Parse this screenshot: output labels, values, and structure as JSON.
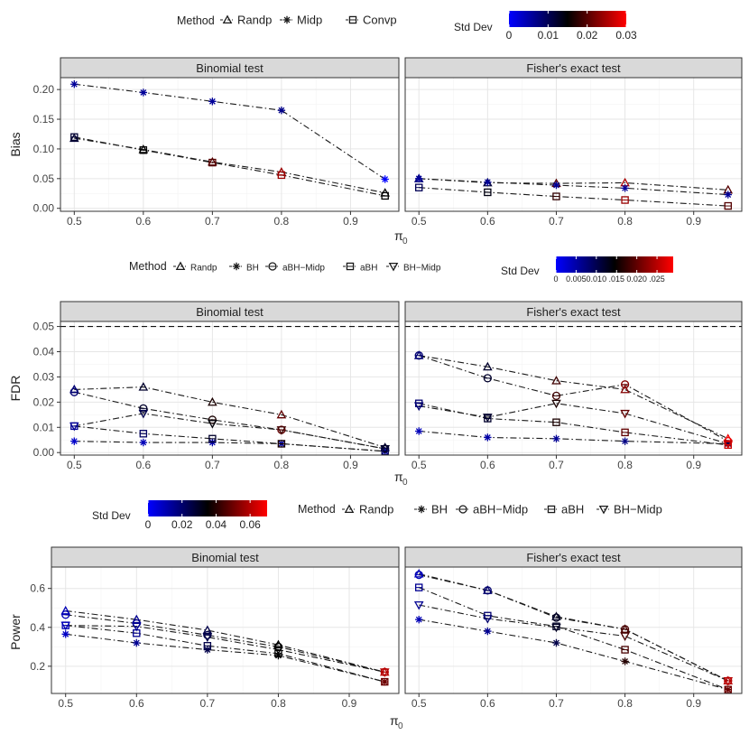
{
  "figure": {
    "method_label": "Method",
    "colorbar_label": "Std Dev",
    "colors": {
      "line": "#1a1a1a",
      "strip_fill": "#d9d9d9",
      "grid": "#ebebeb",
      "panel_border": "#333333",
      "low": "#0000ff",
      "mid": "#000000",
      "high": "#ff0000"
    }
  },
  "chart_data": [
    {
      "id": "bias",
      "type": "line",
      "ylabel": "Bias",
      "xlabel": "π",
      "xlabel_sub": "0",
      "x": [
        0.5,
        0.6,
        0.7,
        0.8,
        0.95
      ],
      "x_ticks": [
        0.5,
        0.6,
        0.7,
        0.8,
        0.9
      ],
      "x_tick_labels": [
        "0.5",
        "0.6",
        "0.7",
        "0.8",
        "0.9"
      ],
      "xlim": [
        0.48,
        0.97
      ],
      "ylim": [
        -0.005,
        0.22
      ],
      "y_ticks": [
        0,
        0.05,
        0.1,
        0.15,
        0.2
      ],
      "y_tick_labels": [
        "0.00",
        "0.05",
        "0.10",
        "0.15",
        "0.20"
      ],
      "methods": [
        {
          "name": "Randp",
          "marker": "triangle-up"
        },
        {
          "name": "Midp",
          "marker": "star"
        },
        {
          "name": "Convp",
          "marker": "square"
        }
      ],
      "colorbar": {
        "range": [
          0,
          0.03
        ],
        "ticks": [
          0,
          0.01,
          0.02,
          0.03
        ],
        "tick_labels": [
          "0",
          "0.01",
          "0.02",
          "0.03"
        ]
      },
      "panels": [
        {
          "title": "Binomial test",
          "series": [
            {
              "name": "Randp",
              "values": [
                0.118,
                0.099,
                0.078,
                0.061,
                0.026
              ],
              "sd": [
                0.012,
                0.015,
                0.02,
                0.024,
                0.015
              ]
            },
            {
              "name": "Midp",
              "values": [
                0.209,
                0.195,
                0.18,
                0.165,
                0.049
              ],
              "sd": [
                0.006,
                0.006,
                0.006,
                0.007,
                0.0
              ]
            },
            {
              "name": "Convp",
              "values": [
                0.12,
                0.098,
                0.077,
                0.056,
                0.021
              ],
              "sd": [
                0.012,
                0.015,
                0.02,
                0.024,
                0.015
              ]
            }
          ]
        },
        {
          "title": "Fisher's exact test",
          "series": [
            {
              "name": "Randp",
              "values": [
                0.05,
                0.043,
                0.042,
                0.043,
                0.031
              ],
              "sd": [
                0.008,
                0.012,
                0.02,
                0.025,
                0.02
              ]
            },
            {
              "name": "Midp",
              "values": [
                0.05,
                0.044,
                0.039,
                0.034,
                0.023
              ],
              "sd": [
                0.006,
                0.006,
                0.006,
                0.006,
                0.006
              ]
            },
            {
              "name": "Convp",
              "values": [
                0.035,
                0.027,
                0.02,
                0.014,
                0.004
              ],
              "sd": [
                0.01,
                0.014,
                0.018,
                0.024,
                0.02
              ]
            }
          ]
        }
      ]
    },
    {
      "id": "fdr",
      "type": "line",
      "ylabel": "FDR",
      "xlabel": "π",
      "xlabel_sub": "0",
      "x": [
        0.5,
        0.6,
        0.7,
        0.8,
        0.95
      ],
      "x_ticks": [
        0.5,
        0.6,
        0.7,
        0.8,
        0.9
      ],
      "x_tick_labels": [
        "0.5",
        "0.6",
        "0.7",
        "0.8",
        "0.9"
      ],
      "xlim": [
        0.48,
        0.97
      ],
      "ylim": [
        -0.001,
        0.052
      ],
      "y_ticks": [
        0,
        0.01,
        0.02,
        0.03,
        0.04,
        0.05
      ],
      "y_tick_labels": [
        "0.00",
        "0.01",
        "0.02",
        "0.03",
        "0.04",
        "0.05"
      ],
      "reference_line": 0.05,
      "methods": [
        {
          "name": "Randp",
          "marker": "triangle-up"
        },
        {
          "name": "BH",
          "marker": "star"
        },
        {
          "name": "aBH−Midp",
          "marker": "circle"
        },
        {
          "name": "aBH",
          "marker": "square"
        },
        {
          "name": "BH−Midp",
          "marker": "triangle-down"
        }
      ],
      "colorbar": {
        "range": [
          0,
          0.029
        ],
        "ticks": [
          0,
          0.005,
          0.01,
          0.015,
          0.02,
          0.025
        ],
        "tick_labels": [
          "0",
          "0.005",
          "0.010",
          ".015",
          "0.020",
          ".025"
        ]
      },
      "panels": [
        {
          "title": "Binomial test",
          "series": [
            {
              "name": "Randp",
              "values": [
                0.025,
                0.026,
                0.02,
                0.015,
                0.002
              ],
              "sd": [
                0.008,
                0.012,
                0.016,
                0.02,
                0.012
              ]
            },
            {
              "name": "BH",
              "values": [
                0.0045,
                0.004,
                0.004,
                0.0035,
                0.0005
              ],
              "sd": [
                0.003,
                0.004,
                0.005,
                0.006,
                0.003
              ]
            },
            {
              "name": "aBH−Midp",
              "values": [
                0.024,
                0.0175,
                0.013,
                0.009,
                0.0015
              ],
              "sd": [
                0.008,
                0.012,
                0.016,
                0.02,
                0.012
              ]
            },
            {
              "name": "aBH",
              "values": [
                0.0105,
                0.0075,
                0.0055,
                0.0035,
                0.0005
              ],
              "sd": [
                0.006,
                0.009,
                0.012,
                0.016,
                0.01
              ]
            },
            {
              "name": "BH−Midp",
              "values": [
                0.0105,
                0.0155,
                0.0115,
                0.009,
                0.0015
              ],
              "sd": [
                0.006,
                0.01,
                0.014,
                0.018,
                0.012
              ]
            }
          ]
        },
        {
          "title": "Fisher's exact test",
          "series": [
            {
              "name": "Randp",
              "values": [
                0.0385,
                0.034,
                0.0285,
                0.025,
                0.0055
              ],
              "sd": [
                0.008,
                0.012,
                0.018,
                0.022,
                0.028
              ]
            },
            {
              "name": "BH",
              "values": [
                0.0085,
                0.006,
                0.0055,
                0.0045,
                0.0035
              ],
              "sd": [
                0.004,
                0.005,
                0.006,
                0.007,
                0.01
              ]
            },
            {
              "name": "aBH−Midp",
              "values": [
                0.0385,
                0.0295,
                0.0225,
                0.027,
                0.0045
              ],
              "sd": [
                0.008,
                0.012,
                0.018,
                0.022,
                0.028
              ]
            },
            {
              "name": "aBH",
              "values": [
                0.0195,
                0.0135,
                0.012,
                0.008,
                0.003
              ],
              "sd": [
                0.008,
                0.012,
                0.016,
                0.02,
                0.026
              ]
            },
            {
              "name": "BH−Midp",
              "values": [
                0.0185,
                0.014,
                0.0195,
                0.0155,
                0.0035
              ],
              "sd": [
                0.008,
                0.012,
                0.016,
                0.02,
                0.026
              ]
            }
          ]
        }
      ]
    },
    {
      "id": "power",
      "type": "line",
      "ylabel": "Power",
      "xlabel": "π",
      "xlabel_sub": "0",
      "x": [
        0.5,
        0.6,
        0.7,
        0.8,
        0.95
      ],
      "x_ticks": [
        0.5,
        0.6,
        0.7,
        0.8,
        0.9
      ],
      "x_tick_labels": [
        "0.5",
        "0.6",
        "0.7",
        "0.8",
        "0.9"
      ],
      "xlim": [
        0.48,
        0.97
      ],
      "ylim": [
        0.06,
        0.71
      ],
      "y_ticks": [
        0.2,
        0.4,
        0.6
      ],
      "y_tick_labels": [
        "0.2",
        "0.4",
        "0.6"
      ],
      "methods": [
        {
          "name": "Randp",
          "marker": "triangle-up"
        },
        {
          "name": "BH",
          "marker": "star"
        },
        {
          "name": "aBH−Midp",
          "marker": "circle"
        },
        {
          "name": "aBH",
          "marker": "square"
        },
        {
          "name": "BH−Midp",
          "marker": "triangle-down"
        }
      ],
      "colorbar": {
        "range": [
          0,
          0.07
        ],
        "ticks": [
          0,
          0.02,
          0.04,
          0.06
        ],
        "tick_labels": [
          "0",
          "0.02",
          "0.04",
          "0.06"
        ]
      },
      "panels": [
        {
          "title": "Binomial test",
          "series": [
            {
              "name": "Randp",
              "values": [
                0.485,
                0.44,
                0.385,
                0.31,
                0.17
              ],
              "sd": [
                0.01,
                0.015,
                0.025,
                0.035,
                0.06
              ]
            },
            {
              "name": "BH",
              "values": [
                0.365,
                0.32,
                0.285,
                0.255,
                0.12
              ],
              "sd": [
                0.008,
                0.015,
                0.025,
                0.035,
                0.05
              ]
            },
            {
              "name": "aBH−Midp",
              "values": [
                0.465,
                0.42,
                0.36,
                0.3,
                0.17
              ],
              "sd": [
                0.01,
                0.015,
                0.025,
                0.035,
                0.06
              ]
            },
            {
              "name": "aBH",
              "values": [
                0.41,
                0.37,
                0.305,
                0.265,
                0.12
              ],
              "sd": [
                0.01,
                0.015,
                0.025,
                0.035,
                0.05
              ]
            },
            {
              "name": "BH−Midp",
              "values": [
                0.41,
                0.405,
                0.35,
                0.285,
                0.17
              ],
              "sd": [
                0.01,
                0.015,
                0.025,
                0.035,
                0.06
              ]
            }
          ]
        },
        {
          "title": "Fisher's exact test",
          "series": [
            {
              "name": "Randp",
              "values": [
                0.675,
                0.59,
                0.455,
                0.39,
                0.125
              ],
              "sd": [
                0.01,
                0.02,
                0.03,
                0.045,
                0.06
              ]
            },
            {
              "name": "BH",
              "values": [
                0.44,
                0.38,
                0.32,
                0.225,
                0.08
              ],
              "sd": [
                0.01,
                0.015,
                0.025,
                0.04,
                0.05
              ]
            },
            {
              "name": "aBH−Midp",
              "values": [
                0.67,
                0.59,
                0.45,
                0.39,
                0.125
              ],
              "sd": [
                0.01,
                0.02,
                0.03,
                0.045,
                0.06
              ]
            },
            {
              "name": "aBH",
              "values": [
                0.605,
                0.46,
                0.405,
                0.285,
                0.08
              ],
              "sd": [
                0.015,
                0.02,
                0.03,
                0.045,
                0.05
              ]
            },
            {
              "name": "BH−Midp",
              "values": [
                0.515,
                0.445,
                0.4,
                0.355,
                0.125
              ],
              "sd": [
                0.015,
                0.02,
                0.03,
                0.045,
                0.06
              ]
            }
          ]
        }
      ]
    }
  ]
}
